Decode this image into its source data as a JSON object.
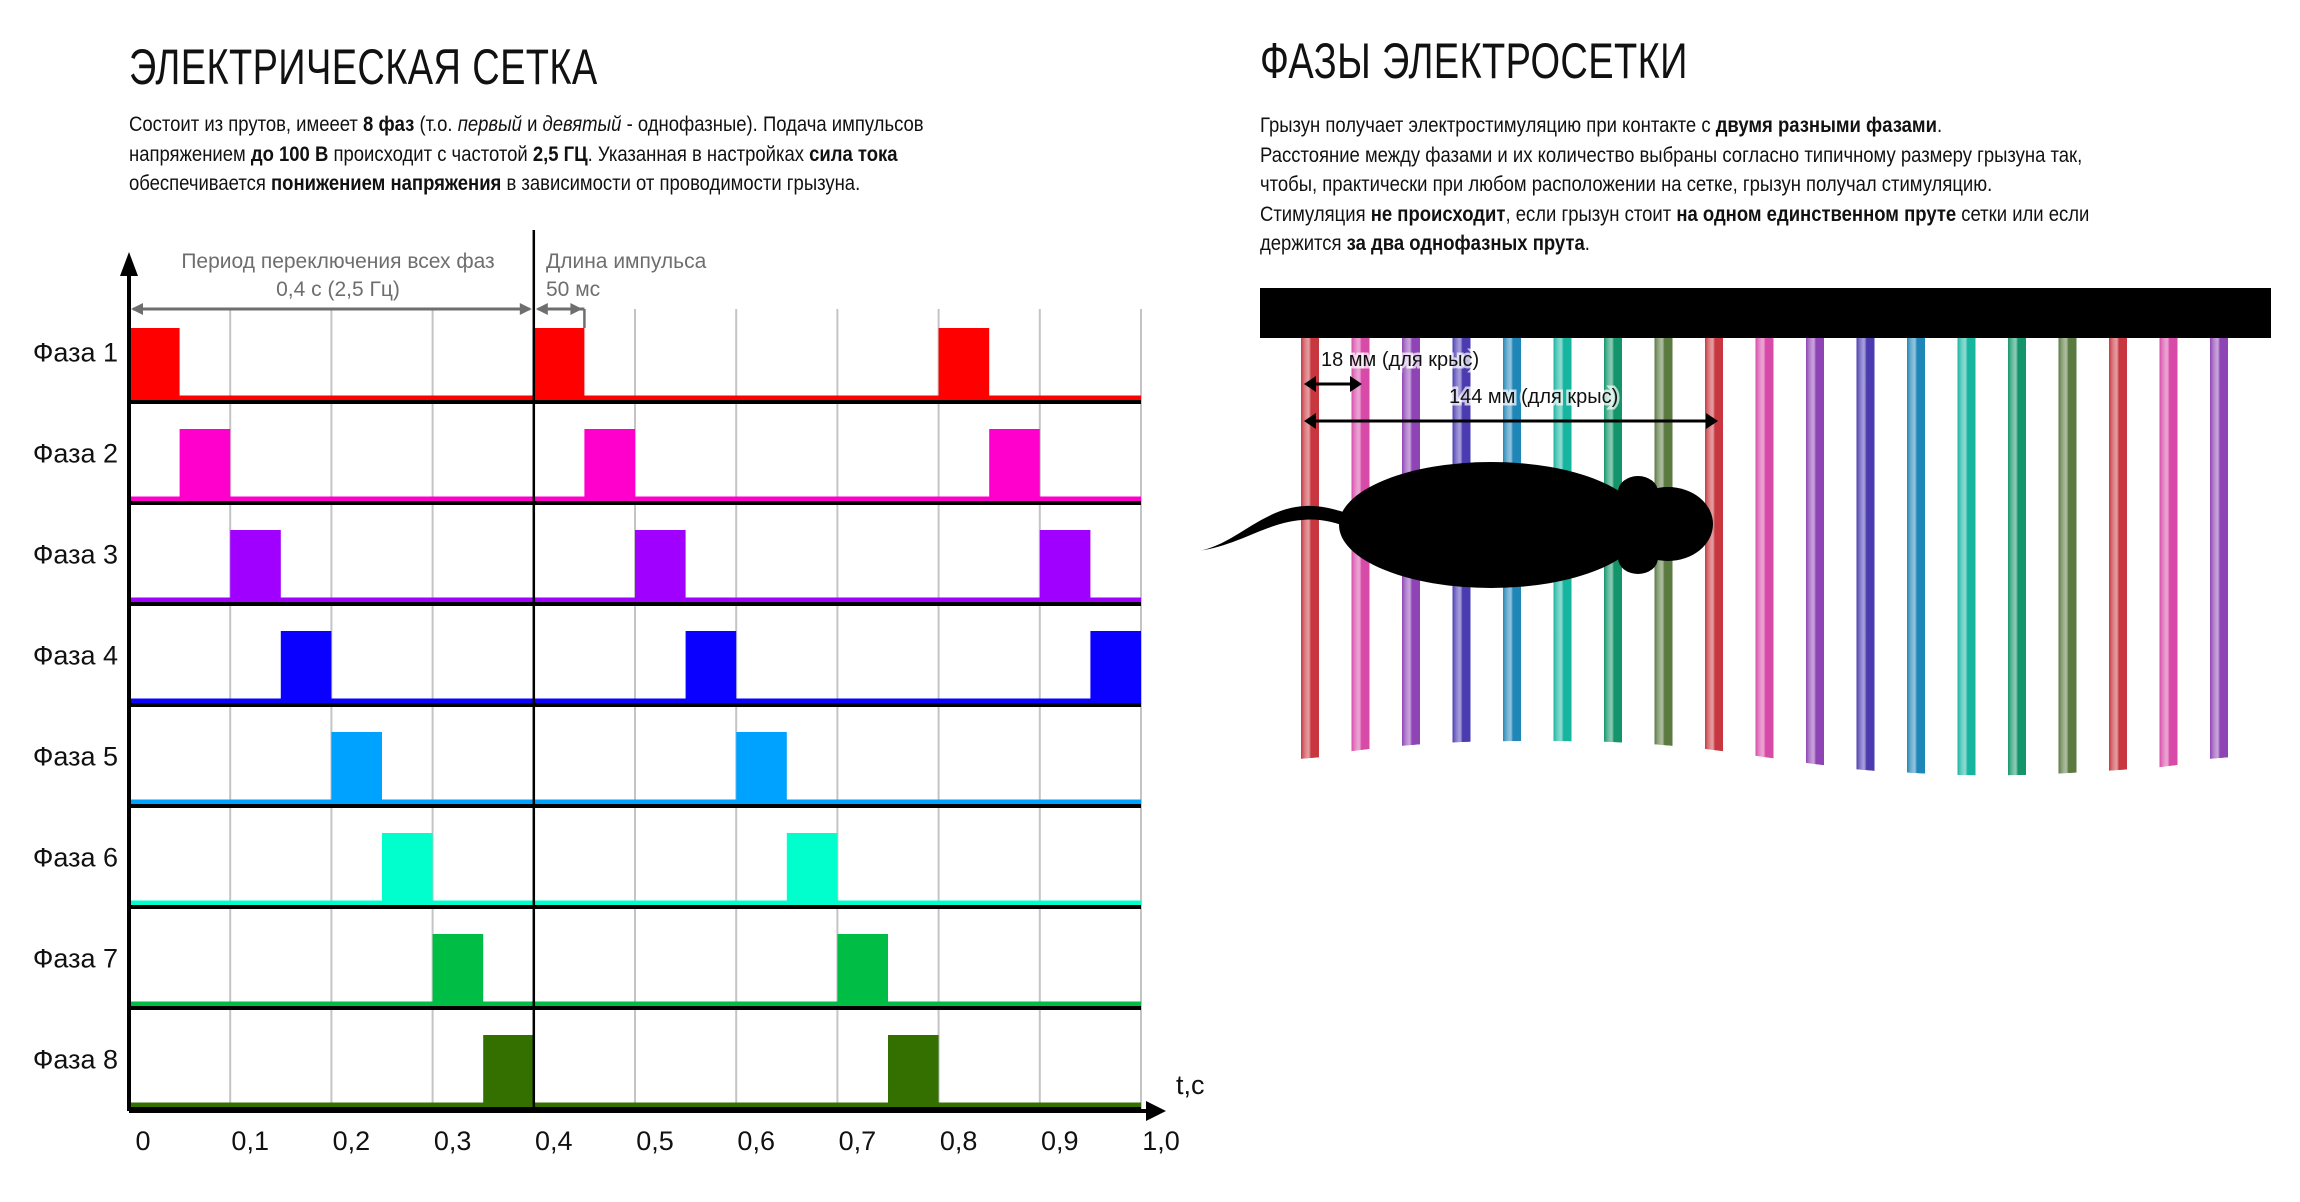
{
  "left": {
    "title": "ЭЛЕКТРИЧЕСКАЯ СЕТКА",
    "paragraph": [
      [
        {
          "t": "Состоит из прутов, имееет "
        },
        {
          "t": "8 фаз",
          "b": true
        },
        {
          "t": " (т.о. "
        },
        {
          "t": "первый",
          "i": true
        },
        {
          "t": " и "
        },
        {
          "t": "девятый",
          "i": true
        },
        {
          "t": " - однофазные). Подача импульсов"
        }
      ],
      [
        {
          "t": "напряжением "
        },
        {
          "t": "до 100 В",
          "b": true
        },
        {
          "t": " происходит с частотой "
        },
        {
          "t": "2,5 ГЦ",
          "b": true
        },
        {
          "t": ". Указанная в настройках "
        },
        {
          "t": "сила тока",
          "b": true
        }
      ],
      [
        {
          "t": "обеспечивается "
        },
        {
          "t": "понижением напряжения",
          "b": true
        },
        {
          "t": " в зависимости от проводимости грызуна."
        }
      ]
    ]
  },
  "right": {
    "title": "ФАЗЫ ЭЛЕКТРОСЕТКИ",
    "paragraph": [
      [
        {
          "t": "Грызун получает электростимуляцию при контакте с "
        },
        {
          "t": "двумя разными фазами",
          "b": true
        },
        {
          "t": "."
        }
      ],
      [
        {
          "t": "Расстояние между фазами и их количество выбраны согласно типичному размеру грызуна так,"
        }
      ],
      [
        {
          "t": "чтобы, практически при любом расположении на сетке, грызун получал стимуляцию."
        }
      ],
      [
        {
          "t": "Стимуляция "
        },
        {
          "t": "не происходит",
          "b": true
        },
        {
          "t": ", если грызун стоит "
        },
        {
          "t": "на одном единственном пруте",
          "b": true
        },
        {
          "t": " сетки или если"
        }
      ],
      [
        {
          "t": "держится "
        },
        {
          "t": "за два однофазных прута",
          "b": true
        },
        {
          "t": "."
        }
      ]
    ],
    "grid": {
      "rod_count": 19,
      "rod_phase_colors": [
        "#c8373f",
        "#d84aa8",
        "#8e44b5",
        "#4a3cb0",
        "#1f86b8",
        "#16b5a0",
        "#13946a",
        "#5a7a40"
      ],
      "spacing_label": "18 мм (для крыс)",
      "period_label": "144 мм (для крыс)"
    }
  },
  "chart_data": {
    "type": "timing",
    "xlabel": "t,c",
    "xlim": [
      0,
      1.0
    ],
    "x_ticks": [
      "0",
      "0,1",
      "0,2",
      "0,3",
      "0,4",
      "0,5",
      "0,6",
      "0,7",
      "0,8",
      "0,9",
      "1,0"
    ],
    "x_tick_values": [
      0,
      0.1,
      0.2,
      0.3,
      0.4,
      0.5,
      0.6,
      0.7,
      0.8,
      0.9,
      1.0
    ],
    "period_s": 0.4,
    "pulse_width_s": 0.05,
    "annotations": {
      "period_line1": "Период переключения всех фаз",
      "period_line2": "0,4 с (2,5 Гц)",
      "pulse_line1": "Длина импульса",
      "pulse_line2": "50 мс"
    },
    "series": [
      {
        "name": "Фаза 1",
        "color": "#ff0000",
        "pulse_starts": [
          0,
          0.4,
          0.8
        ]
      },
      {
        "name": "Фаза 2",
        "color": "#ff00cc",
        "pulse_starts": [
          0.05,
          0.45,
          0.85
        ]
      },
      {
        "name": "Фаза 3",
        "color": "#a000ff",
        "pulse_starts": [
          0.1,
          0.5,
          0.9
        ]
      },
      {
        "name": "Фаза 4",
        "color": "#0a00ff",
        "pulse_starts": [
          0.15,
          0.55,
          0.95
        ]
      },
      {
        "name": "Фаза 5",
        "color": "#00a2ff",
        "pulse_starts": [
          0.2,
          0.6
        ]
      },
      {
        "name": "Фаза 6",
        "color": "#00ffcc",
        "pulse_starts": [
          0.25,
          0.65
        ]
      },
      {
        "name": "Фаза 7",
        "color": "#00bd45",
        "pulse_starts": [
          0.3,
          0.7
        ]
      },
      {
        "name": "Фаза 8",
        "color": "#337000",
        "pulse_starts": [
          0.35,
          0.75
        ]
      }
    ]
  }
}
